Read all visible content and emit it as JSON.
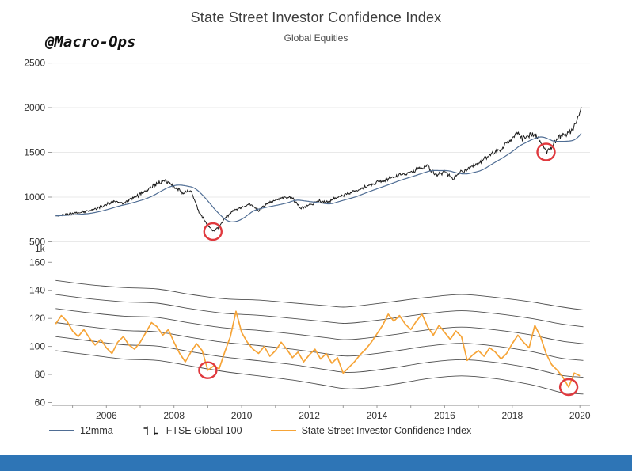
{
  "page": {
    "title": "State Street Investor Confidence Index",
    "subtitle": "Global Equities",
    "watermark": "@Macro-Ops"
  },
  "legend": [
    {
      "label": "12mma",
      "type": "line",
      "color": "#4f6d94"
    },
    {
      "label": "FTSE Global 100",
      "type": "ohlc",
      "color": "#1a1a1a"
    },
    {
      "label": "State Street Investor Confidence Index",
      "type": "line",
      "color": "#F6A437"
    }
  ],
  "annotation_color": "#E0393E",
  "footer_bar_color": "#2E75B6",
  "chart_data": [
    {
      "type": "line",
      "panel": "top",
      "x_range": [
        2004.4,
        2020.3
      ],
      "ylim": [
        500,
        2500
      ],
      "yticks": [
        500,
        1000,
        1500,
        2000,
        2500
      ],
      "y_unit_label": "1k",
      "grid": true,
      "series": [
        {
          "name": "FTSE Global 100",
          "color": "#1a1a1a",
          "x": [
            2004.5,
            2004.75,
            2005,
            2005.25,
            2005.5,
            2005.75,
            2006,
            2006.25,
            2006.5,
            2006.75,
            2007,
            2007.25,
            2007.5,
            2007.75,
            2008,
            2008.25,
            2008.5,
            2008.75,
            2009,
            2009.15,
            2009.3,
            2009.5,
            2009.75,
            2010,
            2010.25,
            2010.5,
            2010.75,
            2011,
            2011.25,
            2011.5,
            2011.75,
            2012,
            2012.25,
            2012.5,
            2012.75,
            2013,
            2013.25,
            2013.5,
            2013.75,
            2014,
            2014.25,
            2014.5,
            2014.75,
            2015,
            2015.25,
            2015.5,
            2015.75,
            2016,
            2016.25,
            2016.5,
            2016.75,
            2017,
            2017.25,
            2017.5,
            2017.75,
            2018,
            2018.15,
            2018.3,
            2018.5,
            2018.75,
            2019,
            2019.15,
            2019.3,
            2019.5,
            2019.75,
            2019.9,
            2020.05
          ],
          "y": [
            790,
            800,
            815,
            830,
            850,
            880,
            920,
            950,
            930,
            985,
            1030,
            1100,
            1150,
            1185,
            1120,
            1050,
            1065,
            830,
            680,
            615,
            650,
            760,
            850,
            885,
            920,
            855,
            925,
            960,
            1005,
            990,
            875,
            910,
            960,
            935,
            990,
            1020,
            1060,
            1085,
            1130,
            1160,
            1190,
            1230,
            1255,
            1275,
            1320,
            1345,
            1245,
            1280,
            1205,
            1290,
            1325,
            1380,
            1450,
            1505,
            1560,
            1650,
            1725,
            1655,
            1700,
            1680,
            1505,
            1540,
            1650,
            1700,
            1730,
            1850,
            2000
          ]
        },
        {
          "name": "12mma",
          "color": "#4f6d94",
          "derived": "moving_average_12m_of_FTSE"
        }
      ],
      "annotations": [
        {
          "x": 2009.15,
          "y": 615
        },
        {
          "x": 2019.0,
          "y": 1505
        }
      ]
    },
    {
      "type": "line",
      "panel": "bottom",
      "name": "State Street Investor Confidence Index",
      "color": "#F6A437",
      "ylim": [
        60,
        160
      ],
      "yticks": [
        60,
        80,
        100,
        120,
        140,
        160
      ],
      "xticks": [
        2006,
        2008,
        2010,
        2012,
        2014,
        2016,
        2018,
        2020
      ],
      "x_start": 2004.5,
      "x_step": 0.16667,
      "values": [
        116,
        122,
        118,
        111,
        107,
        112,
        106,
        101,
        105,
        99,
        95,
        103,
        107,
        101,
        98,
        103,
        110,
        117,
        114,
        108,
        112,
        103,
        95,
        89,
        96,
        102,
        97,
        83,
        86,
        84,
        96,
        107,
        125,
        110,
        103,
        98,
        95,
        100,
        93,
        97,
        103,
        98,
        92,
        96,
        89,
        94,
        98,
        91,
        95,
        88,
        92,
        81,
        85,
        89,
        94,
        98,
        103,
        109,
        115,
        123,
        118,
        122,
        116,
        112,
        118,
        123,
        114,
        108,
        115,
        110,
        105,
        111,
        107,
        90,
        94,
        97,
        93,
        99,
        96,
        91,
        95,
        102,
        108,
        103,
        99,
        115,
        107,
        95,
        87,
        83,
        78,
        71,
        81,
        79
      ],
      "bands": {
        "description": "six smoothed envelope band lines",
        "color": "#3c3c3c",
        "levels": 6,
        "x": [
          2004.5,
          2005.5,
          2006.5,
          2007.5,
          2008.5,
          2009.5,
          2010.5,
          2011.5,
          2012.5,
          2013.0,
          2013.5,
          2014.5,
          2015.5,
          2016.5,
          2017.5,
          2018.5,
          2019.0,
          2019.5,
          2020.1
        ],
        "top": [
          147,
          144,
          142,
          141,
          137,
          134,
          133,
          131,
          129,
          128,
          129,
          132,
          135,
          137,
          135,
          132,
          130,
          128,
          126
        ],
        "bottom": [
          97,
          94,
          91,
          90,
          86,
          82,
          79,
          76,
          72,
          70,
          70,
          73,
          77,
          79,
          77,
          73,
          70,
          67,
          66
        ]
      },
      "annotations": [
        {
          "x": 2009.0,
          "y": 83
        },
        {
          "x": 2019.67,
          "y": 71
        }
      ]
    }
  ]
}
